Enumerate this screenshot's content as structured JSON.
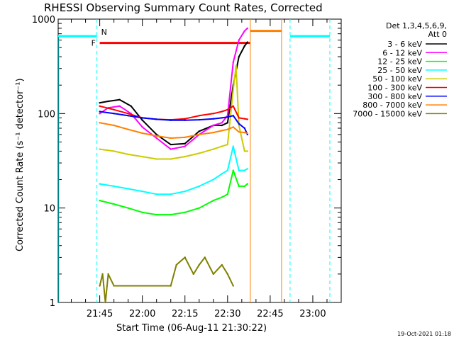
{
  "chart_data": {
    "type": "line",
    "title": "RHESSI Observing Summary Count Rates, Corrected",
    "xlabel": "Start Time (06-Aug-11 21:30:22)",
    "ylabel": "Corrected Count Rate (s⁻¹ detector⁻¹)",
    "yscale": "log",
    "ylim": [
      1,
      1000
    ],
    "xlim": [
      "21:30:22",
      "23:10:00"
    ],
    "x_ticks": [
      "21:45",
      "22:00",
      "22:15",
      "22:30",
      "22:45",
      "23:00"
    ],
    "y_ticks": [
      "1",
      "10",
      "100",
      "1000"
    ],
    "legend_header": [
      "Det 1,3,4,5,6,9,",
      "Att 0"
    ],
    "legend_position": "right",
    "grid": false,
    "markers": [
      {
        "label": "N",
        "color": "#00ffff",
        "description": "night"
      },
      {
        "label": "F",
        "color": "#ff0000",
        "description": "flare"
      }
    ],
    "series": [
      {
        "name": "3 - 6 keV",
        "color": "#000000",
        "x": [
          "21:45",
          "21:48",
          "21:52",
          "21:56",
          "22:00",
          "22:05",
          "22:10",
          "22:15",
          "22:20",
          "22:25",
          "22:28",
          "22:30",
          "22:32",
          "22:34",
          "22:36",
          "22:37"
        ],
        "values": [
          130,
          135,
          140,
          120,
          85,
          60,
          47,
          48,
          65,
          75,
          75,
          80,
          200,
          400,
          520,
          570
        ]
      },
      {
        "name": "6 - 12 keV",
        "color": "#ff00ff",
        "x": [
          "21:45",
          "21:48",
          "21:52",
          "21:56",
          "22:00",
          "22:05",
          "22:10",
          "22:15",
          "22:20",
          "22:25",
          "22:28",
          "22:30",
          "22:32",
          "22:34",
          "22:36",
          "22:37"
        ],
        "values": [
          100,
          115,
          120,
          100,
          72,
          55,
          42,
          45,
          60,
          75,
          80,
          95,
          350,
          600,
          750,
          800
        ]
      },
      {
        "name": "12 - 25 keV",
        "color": "#00ff00",
        "x": [
          "21:45",
          "21:50",
          "21:55",
          "22:00",
          "22:05",
          "22:10",
          "22:15",
          "22:20",
          "22:25",
          "22:28",
          "22:30",
          "22:32",
          "22:34",
          "22:36",
          "22:37"
        ],
        "values": [
          12,
          11,
          10,
          9,
          8.5,
          8.5,
          9,
          10,
          12,
          13,
          14,
          25,
          17,
          17,
          18
        ]
      },
      {
        "name": "25 - 50 keV",
        "color": "#00ffff",
        "x": [
          "21:45",
          "21:50",
          "21:55",
          "22:00",
          "22:05",
          "22:10",
          "22:15",
          "22:20",
          "22:25",
          "22:28",
          "22:30",
          "22:32",
          "22:34",
          "22:36",
          "22:37"
        ],
        "values": [
          18,
          17,
          16,
          15,
          14,
          14,
          15,
          17,
          20,
          23,
          25,
          45,
          25,
          25,
          26
        ]
      },
      {
        "name": "50 - 100 keV",
        "color": "#cccc00",
        "x": [
          "21:45",
          "21:50",
          "21:55",
          "22:00",
          "22:05",
          "22:10",
          "22:15",
          "22:20",
          "22:25",
          "22:28",
          "22:30",
          "22:32",
          "22:33",
          "22:34",
          "22:36",
          "22:37"
        ],
        "values": [
          42,
          40,
          37,
          35,
          33,
          33,
          35,
          38,
          42,
          45,
          47,
          180,
          320,
          75,
          40,
          40
        ]
      },
      {
        "name": "100 - 300 keV",
        "color": "#ff0000",
        "x": [
          "21:45",
          "21:50",
          "21:55",
          "22:00",
          "22:05",
          "22:10",
          "22:15",
          "22:20",
          "22:25",
          "22:28",
          "22:30",
          "22:32",
          "22:34",
          "22:36",
          "22:37"
        ],
        "values": [
          120,
          110,
          100,
          90,
          87,
          86,
          88,
          95,
          100,
          105,
          110,
          120,
          90,
          88,
          87
        ]
      },
      {
        "name": "300 - 800 keV",
        "color": "#0000ff",
        "x": [
          "21:45",
          "21:50",
          "21:55",
          "22:00",
          "22:05",
          "22:10",
          "22:15",
          "22:20",
          "22:25",
          "22:28",
          "22:30",
          "22:32",
          "22:34",
          "22:36",
          "22:37"
        ],
        "values": [
          105,
          100,
          95,
          90,
          87,
          85,
          85,
          86,
          88,
          90,
          92,
          95,
          78,
          70,
          60
        ]
      },
      {
        "name": "800 - 7000 keV",
        "color": "#ff8000",
        "x": [
          "21:45",
          "21:50",
          "21:55",
          "22:00",
          "22:05",
          "22:10",
          "22:15",
          "22:20",
          "22:25",
          "22:28",
          "22:30",
          "22:32",
          "22:34",
          "22:36",
          "22:37"
        ],
        "values": [
          80,
          75,
          68,
          62,
          58,
          55,
          56,
          60,
          63,
          66,
          68,
          72,
          64,
          63,
          62
        ]
      },
      {
        "name": "7000 - 15000 keV",
        "color": "#808000",
        "x": [
          "21:45",
          "21:46",
          "21:47",
          "21:48",
          "21:50",
          "22:10",
          "22:12",
          "22:15",
          "22:18",
          "22:20",
          "22:22",
          "22:25",
          "22:28",
          "22:30",
          "22:32"
        ],
        "values": [
          1.5,
          2,
          1,
          2,
          1.5,
          1.5,
          2.5,
          3,
          2,
          2.5,
          3,
          2,
          2.5,
          2,
          1.5
        ]
      }
    ]
  },
  "footer": {
    "timestamp": "19-Oct-2021 01:18"
  }
}
